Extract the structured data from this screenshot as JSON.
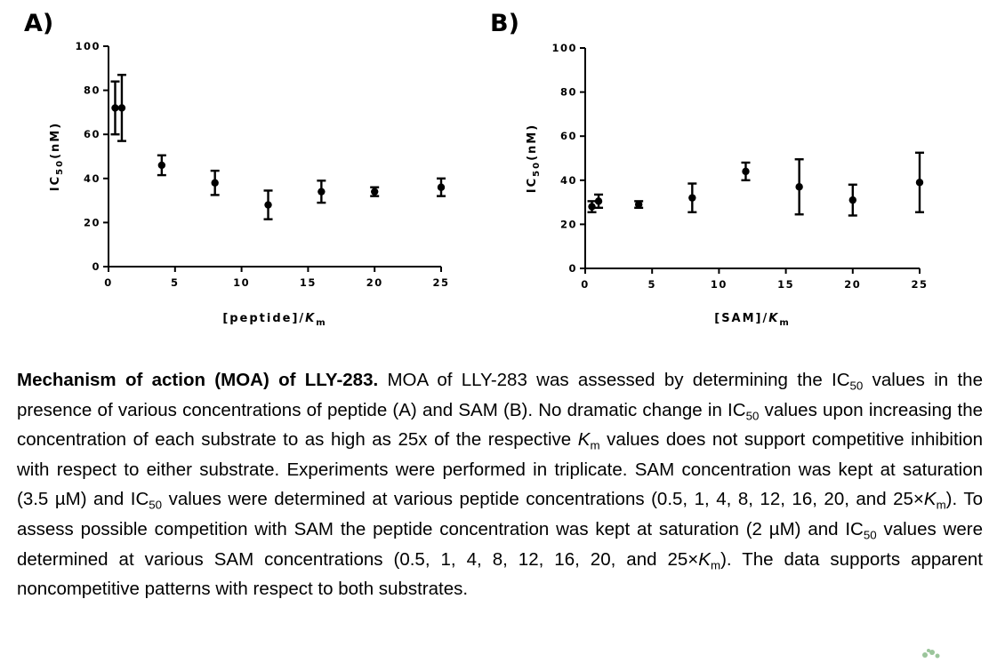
{
  "panels": {
    "a_label": "A)",
    "b_label": "B)"
  },
  "chart_data": [
    {
      "type": "scatter",
      "panel": "A)",
      "xlabel": "[peptide]/K",
      "xlabel_sub": "m",
      "ylabel": "IC",
      "ylabel_sub": "50",
      "ylabel_unit": "(nM)",
      "xlim": [
        0,
        25
      ],
      "ylim": [
        0,
        100
      ],
      "xticks": [
        0,
        5,
        10,
        15,
        20,
        25
      ],
      "yticks": [
        0,
        20,
        40,
        60,
        80,
        100
      ],
      "grid": false,
      "legend": "none",
      "series": [
        {
          "x": [
            0.5,
            1,
            4,
            8,
            12,
            16,
            20,
            25
          ],
          "y": [
            72,
            72,
            46,
            38,
            28,
            34,
            34,
            36
          ],
          "error": [
            12,
            15,
            4.5,
            5.5,
            6.5,
            5,
            2,
            4
          ]
        }
      ]
    },
    {
      "type": "scatter",
      "panel": "B)",
      "xlabel": "[SAM]/K",
      "xlabel_sub": "m",
      "ylabel": "IC",
      "ylabel_sub": "50",
      "ylabel_unit": "(nM)",
      "xlim": [
        0,
        25
      ],
      "ylim": [
        0,
        100
      ],
      "xticks": [
        0,
        5,
        10,
        15,
        20,
        25
      ],
      "yticks": [
        0,
        20,
        40,
        60,
        80,
        100
      ],
      "grid": false,
      "legend": "none",
      "series": [
        {
          "x": [
            0.5,
            1,
            4,
            8,
            12,
            16,
            20,
            25
          ],
          "y": [
            28,
            30.5,
            29,
            32,
            44,
            37,
            31,
            39
          ],
          "error": [
            2.5,
            3,
            1.5,
            6.5,
            4,
            12.5,
            7,
            13.5
          ]
        }
      ]
    }
  ],
  "caption": {
    "title": "Mechanism of action (MOA) of LLY-283.",
    "t1": " MOA of LLY-283 was assessed by determining the IC",
    "s1": "50",
    "t2": " values in the presence of various concentrations of peptide (A) and SAM (B). No dramatic change in IC",
    "s2": "50",
    "t3": " values upon increasing the concentration of each substrate to as high as 25x of the respective ",
    "k1": "K",
    "m1": "m",
    "t4": " values does not support competitive inhibition with respect to either substrate. Experiments were performed in triplicate. SAM concentration was kept at saturation (3.5 µM) and IC",
    "s3": "50",
    "t5": " values were determined at various peptide concentrations (0.5, 1, 4, 8, 12, 16, 20, and 25×",
    "k2": "K",
    "m2": "m",
    "t6": "). To assess possible competition with SAM the peptide concentration was kept at saturation (2 µM) and IC",
    "s4": "50",
    "t7": " values were determined at various SAM concentrations (0.5, 1, 4, 8, 12, 16, 20, and 25×",
    "k3": "K",
    "m3": "m",
    "t8": "). The data supports apparent noncompetitive patterns with respect to both substrates."
  },
  "colors": {
    "ink": "#000000",
    "logo": "#5aa05a"
  }
}
